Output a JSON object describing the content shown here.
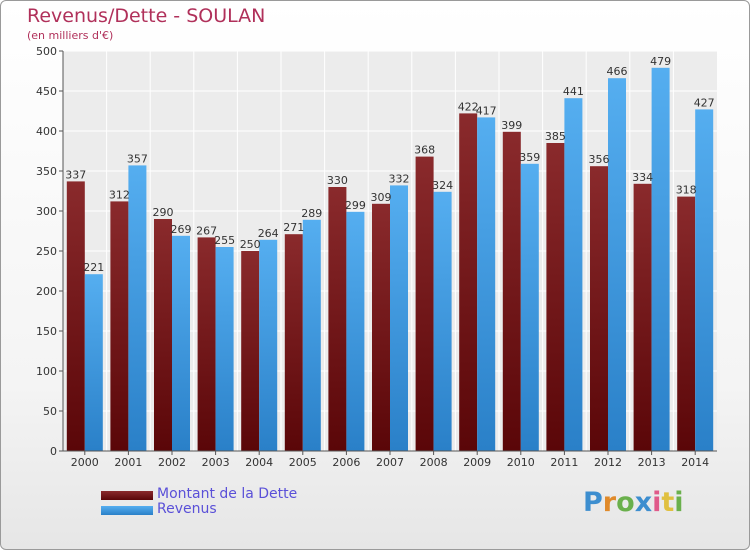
{
  "header": {
    "title": "Revenus/Dette - SOULAN",
    "subtitle": "(en milliers d'€)"
  },
  "colors": {
    "debt": "#6b1416",
    "revenue": "#3b9ae0",
    "title": "#b0305a",
    "legend_text": "#5a50d8"
  },
  "logo": {
    "text": "Proxiti",
    "letter_colors": [
      "#3d8ecf",
      "#e08a2a",
      "#6ab04c",
      "#3d8ecf",
      "#e05a8a",
      "#e0c040",
      "#6ab04c"
    ]
  },
  "chart_data": {
    "type": "bar",
    "title": "Revenus/Dette - SOULAN",
    "subtitle": "(en milliers d'€)",
    "categories": [
      "2000",
      "2001",
      "2002",
      "2003",
      "2004",
      "2005",
      "2006",
      "2007",
      "2008",
      "2009",
      "2010",
      "2011",
      "2012",
      "2013",
      "2014"
    ],
    "series": [
      {
        "name": "Montant de la Dette",
        "values": [
          337,
          312,
          290,
          267,
          250,
          271,
          330,
          309,
          368,
          422,
          399,
          385,
          356,
          334,
          318
        ]
      },
      {
        "name": "Revenus",
        "values": [
          221,
          357,
          269,
          255,
          264,
          289,
          299,
          332,
          324,
          417,
          359,
          441,
          466,
          479,
          427
        ]
      }
    ],
    "ylim": [
      0,
      500
    ],
    "yticks": [
      0,
      50,
      100,
      150,
      200,
      250,
      300,
      350,
      400,
      450,
      500
    ],
    "grid": true,
    "legend_position": "bottom-left"
  }
}
